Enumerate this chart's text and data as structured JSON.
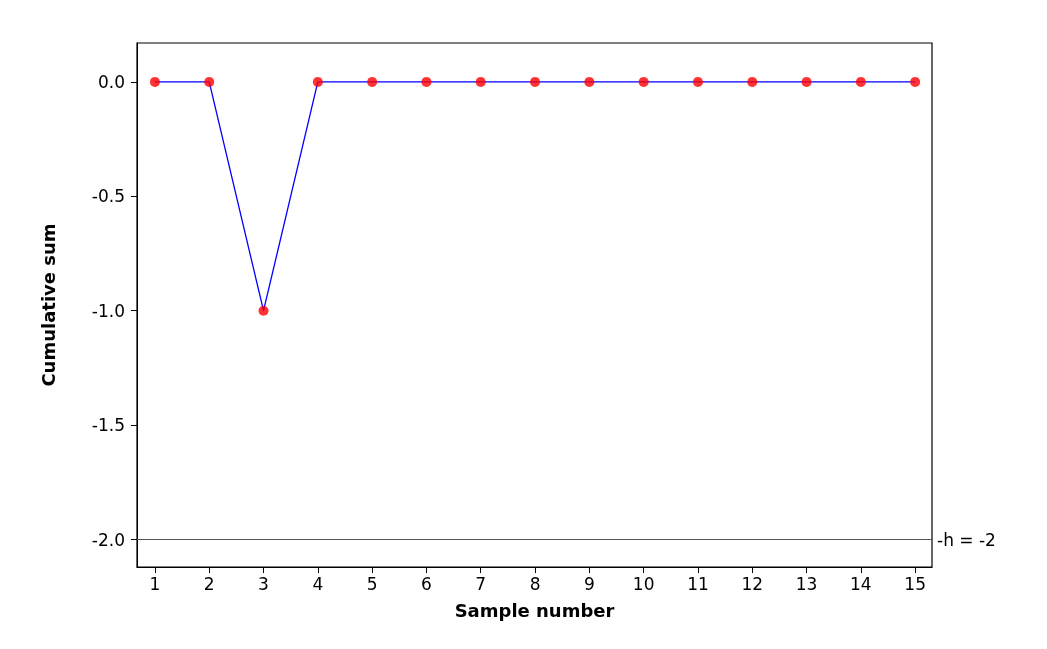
{
  "chart_data": {
    "type": "line",
    "xlabel": "Sample number",
    "ylabel": "Cumulative sum",
    "x": [
      1,
      2,
      3,
      4,
      5,
      6,
      7,
      8,
      9,
      10,
      11,
      12,
      13,
      14,
      15
    ],
    "series": [
      {
        "color": "#0000ff",
        "marker": "none",
        "values": [
          0,
          0,
          -1,
          0,
          0,
          0,
          0,
          0,
          0,
          0,
          0,
          0,
          0,
          0,
          0
        ]
      },
      {
        "type": "scatter",
        "color": "#ff0000",
        "marker": "circle",
        "values": [
          0,
          0,
          -1,
          0,
          0,
          0,
          0,
          0,
          0,
          0,
          0,
          0,
          0,
          0,
          0
        ]
      }
    ],
    "xlim": [
      0.67,
      15.31
    ],
    "ylim": [
      -2.12,
      0.17
    ],
    "xticks": [
      1,
      2,
      3,
      4,
      5,
      6,
      7,
      8,
      9,
      10,
      11,
      12,
      13,
      14,
      15
    ],
    "yticks": [
      {
        "value": -2,
        "label": "-2.0"
      },
      {
        "value": -1.5,
        "label": "-1.5"
      },
      {
        "value": -1,
        "label": "-1.0"
      },
      {
        "value": -0.5,
        "label": "-0.5"
      },
      {
        "value": 0,
        "label": "0.0"
      }
    ],
    "ref_lines": [
      {
        "axis": "y",
        "value": -2,
        "label": "-h = -2",
        "color": "#555555"
      }
    ],
    "grid": false
  }
}
